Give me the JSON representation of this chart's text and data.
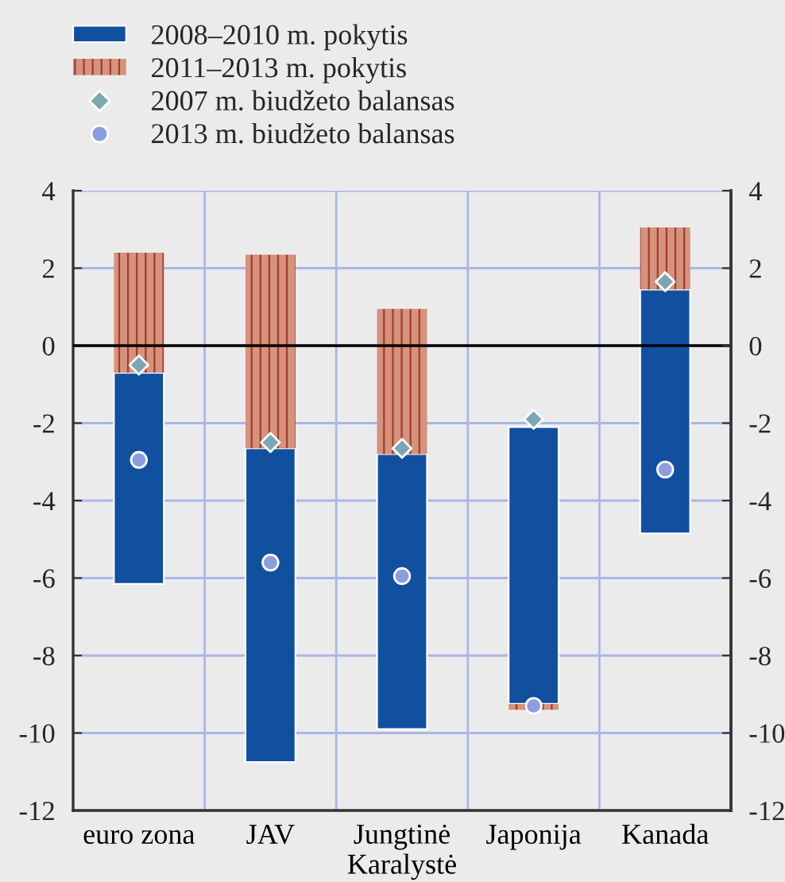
{
  "chart_data": {
    "type": "bar",
    "categories": [
      "euro zona",
      "JAV",
      "Jungtinė\nKaralystė",
      "Japonija",
      "Kanada"
    ],
    "series": [
      {
        "name": "2008–2010 m. pokytis",
        "color": "#11509e",
        "base": [
          -0.7,
          -2.65,
          -2.8,
          -2.1,
          1.45
        ],
        "values": [
          -5.45,
          -8.1,
          -7.1,
          -7.15,
          -6.3
        ]
      },
      {
        "name": "2011–2013 m. pokytis",
        "color": "#d4937d",
        "base": [
          -0.7,
          -2.65,
          -2.8,
          -9.25,
          1.45
        ],
        "values": [
          3.1,
          5.0,
          3.75,
          -0.15,
          1.6
        ]
      },
      {
        "name": "2007 m. biudžeto balansas",
        "type": "scatter",
        "marker": "diamond",
        "color": "#7ba7b3",
        "x": [
          "euro zona",
          "JAV",
          "Jungtinė\nKaralystė",
          "Japonija",
          "Kanada"
        ],
        "values": [
          -0.5,
          -2.5,
          -2.65,
          -1.9,
          1.65
        ]
      },
      {
        "name": "2013 m. biudžeto balansas",
        "type": "scatter",
        "marker": "circle",
        "color": "#8c9de0",
        "x": [
          "euro zona",
          "JAV",
          "Jungtinė\nKaralystė",
          "Japonija",
          "Kanada"
        ],
        "values": [
          -2.95,
          -5.6,
          -5.95,
          -9.3,
          -3.2
        ]
      }
    ],
    "ylim": [
      -12,
      4
    ],
    "yticks": [
      -12,
      -10,
      -8,
      -6,
      -4,
      -2,
      0,
      2,
      4
    ],
    "y2lim": [
      -12,
      4
    ],
    "y2ticks": [
      -12,
      -10,
      -8,
      -6,
      -4,
      -2,
      0,
      2,
      4
    ],
    "grid": true,
    "legend": "top left",
    "ref_lines": [
      {
        "axis": "y",
        "value": 0,
        "color": "#000000"
      }
    ]
  }
}
